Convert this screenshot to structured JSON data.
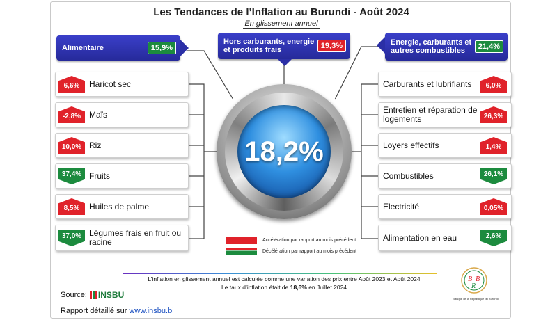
{
  "header": {
    "title": "Les Tendances de l’Inflation au Burundi - Août 2024",
    "subtitle": "En glissement annuel"
  },
  "center": {
    "value": "18,2%"
  },
  "groups": [
    {
      "label": "Alimentaire",
      "value": "15,9%",
      "direction": "down"
    },
    {
      "label": "Hors carburants, energie et produits frais",
      "value": "19,3%",
      "direction": "up"
    },
    {
      "label": "Energie, carburants et autres combustibles",
      "value": "21,4%",
      "direction": "down"
    }
  ],
  "left_items": [
    {
      "label": "Haricot sec",
      "value": "6,6%",
      "direction": "up"
    },
    {
      "label": "Maïs",
      "value": "-2,8%",
      "direction": "up"
    },
    {
      "label": "Riz",
      "value": "10,0%",
      "direction": "up"
    },
    {
      "label": "Fruits",
      "value": "37,4%",
      "direction": "down"
    },
    {
      "label": "Huiles de palme",
      "value": "8,5%",
      "direction": "up"
    },
    {
      "label": "Légumes frais en fruit ou racine",
      "value": "37,0%",
      "direction": "down"
    }
  ],
  "right_items": [
    {
      "label": "Carburants et lubrifiants",
      "value": "6,0%",
      "direction": "up"
    },
    {
      "label": "Entretien et réparation de logements",
      "value": "26,3%",
      "direction": "up"
    },
    {
      "label": "Loyers effectifs",
      "value": "1,4%",
      "direction": "up"
    },
    {
      "label": "Combustibles",
      "value": "26,1%",
      "direction": "down"
    },
    {
      "label": "Electricité",
      "value": "0,05%",
      "direction": "up"
    },
    {
      "label": "Alimentation en eau",
      "value": "2,6%",
      "direction": "down"
    }
  ],
  "legend": {
    "acceleration": "Accélération par rapport au mois précédent",
    "deceleration": "Décélération par rapport au mois précédent"
  },
  "notes": {
    "line1": "L’inflation en glissement annuel est calculée comme une variation des prix entre Août  2023 et Août 2024",
    "line2_prefix": "Le taux d’inflation était de ",
    "line2_value": "18,6%",
    "line2_suffix": " en Juillet  2024"
  },
  "footer": {
    "source_label": "Source:",
    "source_name": "INSBU",
    "report_label": "Rapport détaillé sur ",
    "report_link": "www.insbu.bi",
    "brb_caption": "Banque de la République du Burundi",
    "brb_letters": [
      "B",
      "R",
      "B"
    ]
  },
  "colors": {
    "acceleration": "#e0222a",
    "deceleration": "#1c8b3e",
    "header": "#2b2fa6"
  },
  "chart_data": {
    "type": "table",
    "title": "Les Tendances de l’Inflation au Burundi - Août 2024",
    "subtitle": "En glissement annuel",
    "overall": 18.2,
    "groups": [
      {
        "name": "Alimentaire",
        "value": 15.9,
        "trend": "deceleration"
      },
      {
        "name": "Hors carburants, energie et produits frais",
        "value": 19.3,
        "trend": "acceleration"
      },
      {
        "name": "Energie, carburants et autres combustibles",
        "value": 21.4,
        "trend": "deceleration"
      }
    ],
    "items": [
      {
        "group": "Alimentaire",
        "name": "Haricot sec",
        "value": 6.6,
        "trend": "acceleration"
      },
      {
        "group": "Alimentaire",
        "name": "Maïs",
        "value": -2.8,
        "trend": "acceleration"
      },
      {
        "group": "Alimentaire",
        "name": "Riz",
        "value": 10.0,
        "trend": "acceleration"
      },
      {
        "group": "Alimentaire",
        "name": "Fruits",
        "value": 37.4,
        "trend": "deceleration"
      },
      {
        "group": "Alimentaire",
        "name": "Huiles de palme",
        "value": 8.5,
        "trend": "acceleration"
      },
      {
        "group": "Alimentaire",
        "name": "Légumes frais en fruit ou racine",
        "value": 37.0,
        "trend": "deceleration"
      },
      {
        "group": "Energie, carburants et autres combustibles",
        "name": "Carburants et lubrifiants",
        "value": 6.0,
        "trend": "acceleration"
      },
      {
        "group": "Energie, carburants et autres combustibles",
        "name": "Entretien et réparation de logements",
        "value": 26.3,
        "trend": "acceleration"
      },
      {
        "group": "Energie, carburants et autres combustibles",
        "name": "Loyers effectifs",
        "value": 1.4,
        "trend": "acceleration"
      },
      {
        "group": "Energie, carburants et autres combustibles",
        "name": "Combustibles",
        "value": 26.1,
        "trend": "deceleration"
      },
      {
        "group": "Energie, carburants et autres combustibles",
        "name": "Electricité",
        "value": 0.05,
        "trend": "acceleration"
      },
      {
        "group": "Energie, carburants et autres combustibles",
        "name": "Alimentation en eau",
        "value": 2.6,
        "trend": "deceleration"
      }
    ]
  }
}
